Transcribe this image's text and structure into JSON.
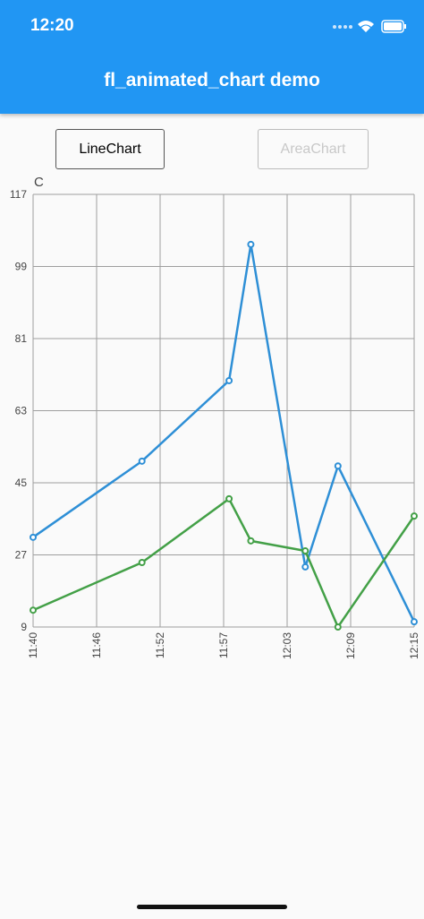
{
  "status_bar": {
    "time": "12:20"
  },
  "app_bar": {
    "title": "fl_animated_chart demo"
  },
  "buttons": [
    {
      "label": "LineChart"
    },
    {
      "label": "AreaChart"
    }
  ],
  "chart_data": {
    "type": "line",
    "y_label": "C",
    "x": [
      "11:40",
      "11:50",
      "11:58",
      "12:00",
      "12:05",
      "12:08",
      "12:15"
    ],
    "series": [
      {
        "color": "#2e8fd6",
        "values": [
          31.4,
          50.4,
          70.5,
          104.5,
          24,
          49.2,
          10.3
        ]
      },
      {
        "color": "#43a047",
        "values": [
          13.2,
          25.1,
          41,
          30.5,
          28,
          9,
          36.7
        ]
      }
    ],
    "xlim": [
      "11:40",
      "12:15"
    ],
    "xticks": [
      {
        "value": "11:40:00",
        "label": "11:40"
      },
      {
        "value": "11:45:50",
        "label": "11:46"
      },
      {
        "value": "11:51:40",
        "label": "11:52"
      },
      {
        "value": "11:57:30",
        "label": "11:57"
      },
      {
        "value": "12:03:20",
        "label": "12:03"
      },
      {
        "value": "12:09:10",
        "label": "12:09"
      },
      {
        "value": "12:15:00",
        "label": "12:15"
      }
    ],
    "ylim": [
      9,
      117
    ],
    "yticks": [
      9,
      27,
      45,
      63,
      81,
      99,
      117
    ],
    "grid": true
  }
}
